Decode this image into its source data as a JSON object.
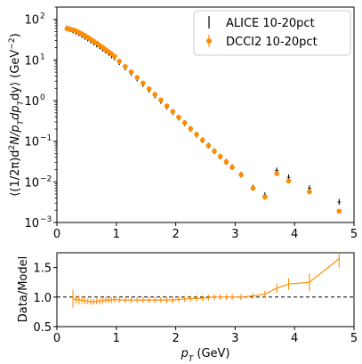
{
  "chart_data": [
    {
      "type": "scatter",
      "ylabel": "⟨(1/2π)d²N/p_T dp_T dy⟩ (GeV⁻²)",
      "ylabel_main": "⟨(1/2π)d",
      "ylabel_sup2": "2",
      "ylabel_mid": "N/p",
      "ylabel_subT": "T",
      "ylabel_dp": "dp",
      "ylabel_subT2": "T",
      "ylabel_dy": "dy⟩ (GeV",
      "ylabel_supm2": "−2",
      "ylabel_close": ")",
      "yscale": "log",
      "ylim": [
        0.001,
        200
      ],
      "xlim": [
        0,
        5
      ],
      "xticks": [
        "0",
        "1",
        "2",
        "3",
        "4",
        "5"
      ],
      "yticks": [
        {
          "value": 0.001,
          "base": "10",
          "exp": "−3"
        },
        {
          "value": 0.01,
          "base": "10",
          "exp": "−2"
        },
        {
          "value": 0.1,
          "base": "10",
          "exp": "−1"
        },
        {
          "value": 1,
          "base": "10",
          "exp": "0"
        },
        {
          "value": 10,
          "base": "10",
          "exp": "1"
        },
        {
          "value": 100,
          "base": "10",
          "exp": "2"
        }
      ],
      "legend_position": "top-right",
      "series": [
        {
          "name": "ALICE 10-20pct",
          "color": "#000000",
          "style": "errorbar-nomarker",
          "x": [
            0.17,
            0.22,
            0.27,
            0.32,
            0.37,
            0.42,
            0.47,
            0.52,
            0.57,
            0.62,
            0.67,
            0.72,
            0.77,
            0.82,
            0.87,
            0.92,
            0.97,
            1.05,
            1.15,
            1.25,
            1.35,
            1.45,
            1.55,
            1.65,
            1.75,
            1.85,
            1.95,
            2.05,
            2.15,
            2.25,
            2.35,
            2.45,
            2.55,
            2.65,
            2.75,
            2.85,
            2.95,
            3.1,
            3.3,
            3.5,
            3.7,
            3.9,
            4.25,
            4.75
          ],
          "y": [
            60,
            57,
            53,
            49,
            45,
            41,
            37,
            33.5,
            30,
            27,
            24,
            21.5,
            19,
            17,
            15,
            13,
            11.5,
            8.8,
            6.5,
            4.8,
            3.5,
            2.55,
            1.85,
            1.35,
            0.98,
            0.71,
            0.52,
            0.38,
            0.28,
            0.2,
            0.145,
            0.106,
            0.078,
            0.057,
            0.042,
            0.031,
            0.023,
            0.015,
            0.0072,
            0.0047,
            0.019,
            0.013,
            0.007,
            0.0032
          ]
        },
        {
          "name": "DCCI2 10-20pct",
          "color": "#ff8c00",
          "style": "marker",
          "x": [
            0.17,
            0.22,
            0.27,
            0.32,
            0.37,
            0.42,
            0.47,
            0.52,
            0.57,
            0.62,
            0.67,
            0.72,
            0.77,
            0.82,
            0.87,
            0.92,
            0.97,
            1.05,
            1.15,
            1.25,
            1.35,
            1.45,
            1.55,
            1.65,
            1.75,
            1.85,
            1.95,
            2.05,
            2.15,
            2.25,
            2.35,
            2.45,
            2.55,
            2.65,
            2.75,
            2.85,
            2.95,
            3.1,
            3.3,
            3.5,
            3.7,
            3.9,
            4.25,
            4.75
          ],
          "y": [
            59,
            57,
            55,
            52,
            48,
            44,
            40,
            36,
            32.5,
            29,
            26,
            23,
            20.5,
            18,
            16,
            14,
            12.3,
            9.3,
            6.9,
            5.1,
            3.7,
            2.7,
            1.95,
            1.42,
            1.03,
            0.74,
            0.54,
            0.39,
            0.285,
            0.205,
            0.148,
            0.107,
            0.078,
            0.057,
            0.042,
            0.031,
            0.023,
            0.015,
            0.0069,
            0.0042,
            0.016,
            0.0105,
            0.0057,
            0.0019
          ]
        }
      ]
    },
    {
      "type": "line",
      "xlabel_main": "p",
      "xlabel_sub": "T",
      "xlabel_unit": " (GeV)",
      "ylabel": "Data/Model",
      "xlim": [
        0,
        5
      ],
      "ylim": [
        0.5,
        1.75
      ],
      "xticks": [
        "0",
        "1",
        "2",
        "3",
        "4",
        "5"
      ],
      "yticks": [
        "0.5",
        "1.0",
        "1.5"
      ],
      "reference_line": 1.0,
      "series": [
        {
          "color": "#ff8c00",
          "x": [
            0.27,
            0.32,
            0.37,
            0.42,
            0.47,
            0.52,
            0.57,
            0.62,
            0.67,
            0.72,
            0.77,
            0.82,
            0.87,
            0.92,
            0.97,
            1.05,
            1.15,
            1.25,
            1.35,
            1.45,
            1.55,
            1.65,
            1.75,
            1.85,
            1.95,
            2.05,
            2.15,
            2.25,
            2.35,
            2.45,
            2.55,
            2.65,
            2.75,
            2.85,
            2.95,
            3.1,
            3.3,
            3.5,
            3.7,
            3.9,
            4.25,
            4.75
          ],
          "y": [
            0.97,
            0.96,
            0.95,
            0.95,
            0.94,
            0.93,
            0.92,
            0.92,
            0.93,
            0.93,
            0.94,
            0.95,
            0.95,
            0.95,
            0.96,
            0.95,
            0.95,
            0.95,
            0.95,
            0.95,
            0.95,
            0.95,
            0.95,
            0.95,
            0.95,
            0.96,
            0.97,
            0.97,
            0.98,
            0.98,
            0.99,
            1.0,
            1.0,
            1.0,
            1.0,
            1.0,
            1.02,
            1.05,
            1.15,
            1.22,
            1.25,
            1.65
          ],
          "err": [
            0.15,
            0.07,
            0.07,
            0.06,
            0.06,
            0.05,
            0.05,
            0.05,
            0.05,
            0.05,
            0.05,
            0.05,
            0.05,
            0.05,
            0.05,
            0.05,
            0.05,
            0.05,
            0.05,
            0.05,
            0.05,
            0.05,
            0.05,
            0.05,
            0.05,
            0.05,
            0.05,
            0.05,
            0.05,
            0.05,
            0.05,
            0.05,
            0.05,
            0.05,
            0.05,
            0.05,
            0.05,
            0.06,
            0.08,
            0.1,
            0.15,
            0.15
          ]
        }
      ]
    }
  ]
}
